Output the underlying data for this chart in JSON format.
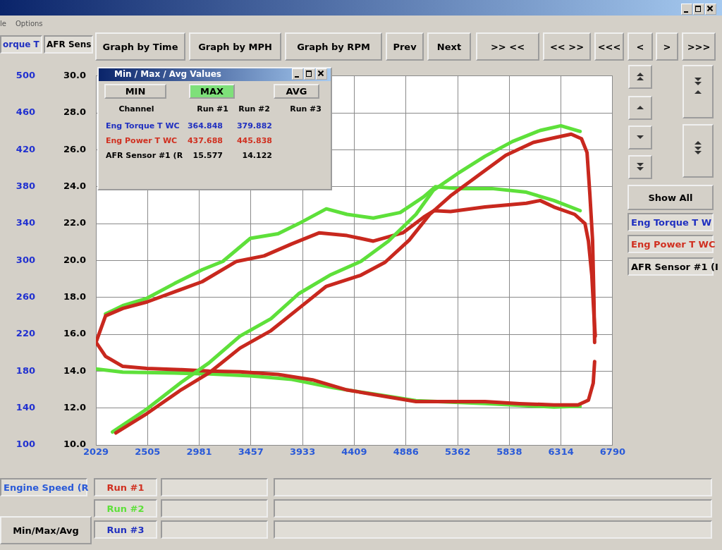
{
  "chart_data": {
    "type": "line",
    "xlabel": "Engine Speed (R",
    "ylabel": "orque T",
    "y2label": "AFR Sens",
    "xlim": [
      2029,
      6790
    ],
    "xticks": [
      2029,
      2505,
      2981,
      3457,
      3933,
      4409,
      4886,
      5362,
      5838,
      6314,
      6790
    ],
    "ylim": [
      100,
      500
    ],
    "yticks": [
      100,
      140,
      180,
      220,
      260,
      300,
      340,
      380,
      420,
      460,
      500
    ],
    "y2lim": [
      10,
      30
    ],
    "y2ticks": [
      {
        "value": 10,
        "label": "10.0"
      },
      {
        "value": 12,
        "label": "12.0"
      },
      {
        "value": 14,
        "label": "14.0"
      },
      {
        "value": 16,
        "label": "16.0"
      },
      {
        "value": 18,
        "label": "18.0"
      },
      {
        "value": 20,
        "label": "20.0"
      },
      {
        "value": 22,
        "label": "22.0"
      },
      {
        "value": 24,
        "label": "24.0"
      },
      {
        "value": 26,
        "label": "26.0"
      },
      {
        "value": 28,
        "label": "28.0"
      },
      {
        "value": 30,
        "label": "30.0"
      }
    ],
    "grid": true,
    "legend": false,
    "marker": "none",
    "line_style": "solid",
    "series": [
      {
        "color": "#c8281e",
        "x": [
          2213,
          2499,
          2817,
          3071,
          3357,
          3643,
          3898,
          4152,
          4470,
          4693,
          4915,
          5105,
          5296,
          5550,
          5805,
          6059,
          6249,
          6408,
          6503,
          6554,
          6580,
          6605,
          6618,
          6624
        ],
        "values": [
          113,
          134,
          160,
          178,
          205,
          224,
          248,
          272,
          284,
          298,
          322,
          350,
          370,
          392,
          414,
          428,
          433,
          437,
          432,
          417,
          372,
          322,
          256,
          211
        ]
      },
      {
        "color": "#5ee03a",
        "x": [
          2182,
          2499,
          2817,
          3071,
          3357,
          3643,
          3898,
          4184,
          4470,
          4724,
          4978,
          5137,
          5359,
          5614,
          5868,
          6122,
          6313,
          6490
        ],
        "values": [
          114,
          139,
          168,
          189,
          218,
          237,
          264,
          284,
          299,
          321,
          350,
          376,
          394,
          413,
          429,
          441,
          446,
          440
        ]
      },
      {
        "color": "#c8281e",
        "x": [
          2029,
          2118,
          2277,
          2499,
          2753,
          3008,
          3325,
          3579,
          3834,
          4088,
          4343,
          4585,
          4857,
          5049,
          5143,
          5296,
          5614,
          5995,
          6122,
          6249,
          6440,
          6535,
          6567,
          6598,
          6618,
          6630
        ],
        "values": [
          211,
          240,
          248,
          255,
          266,
          277,
          299,
          305,
          318,
          330,
          327,
          321,
          330,
          347,
          354,
          353,
          358,
          362,
          365,
          358,
          350,
          340,
          321,
          284,
          240,
          218
        ]
      },
      {
        "color": "#5ee03a",
        "x": [
          2118,
          2277,
          2499,
          2753,
          3008,
          3198,
          3452,
          3707,
          3898,
          4152,
          4343,
          4585,
          4833,
          5049,
          5156,
          5359,
          5677,
          5995,
          6249,
          6490
        ],
        "values": [
          242,
          251,
          259,
          275,
          290,
          299,
          324,
          329,
          340,
          356,
          350,
          346,
          352,
          369,
          380,
          378,
          378,
          374,
          365,
          354
        ]
      },
      {
        "color": "#c8281e",
        "axis": "y2",
        "x": [
          2029,
          2118,
          2277,
          2499,
          2817,
          3071,
          3357,
          3707,
          4025,
          4343,
          4724,
          4978,
          5296,
          5614,
          5932,
          6249,
          6471,
          6567,
          6611,
          6624
        ],
        "values": [
          15.58,
          14.8,
          14.26,
          14.15,
          14.08,
          14.0,
          13.97,
          13.82,
          13.53,
          12.98,
          12.6,
          12.35,
          12.35,
          12.35,
          12.24,
          12.17,
          12.17,
          12.43,
          13.35,
          14.52
        ]
      },
      {
        "color": "#5ee03a",
        "axis": "y2",
        "x": [
          2029,
          2277,
          2753,
          3071,
          3452,
          3834,
          4215,
          4597,
          4978,
          5614,
          6249,
          6490
        ],
        "values": [
          14.12,
          13.95,
          13.9,
          13.85,
          13.75,
          13.55,
          13.1,
          12.75,
          12.4,
          12.25,
          12.05,
          12.1
        ]
      }
    ],
    "annotations": [
      "Min / Max / Avg Values",
      "MIN",
      "MAX",
      "AVG",
      "Channel",
      "Run #1",
      "Run #2",
      "Run #3",
      "Eng Torque T WC",
      "364.848",
      "379.882",
      "Eng Power T WC",
      "437.688",
      "445.838",
      "AFR Sensor #1 (R",
      "15.577",
      "14.122",
      "Graph by Time",
      "Graph by MPH",
      "Graph by RPM",
      "Prev",
      "Next",
      ">> <<",
      "<< >>",
      "<<<",
      "<",
      ">",
      ">>>",
      "Show All",
      "Eng Torque T W",
      "Eng Power T WC",
      "AFR Sensor #1 (I",
      "Run #1",
      "Run #2",
      "Run #3",
      "Min/Max/Avg",
      "le",
      "Options"
    ]
  }
}
